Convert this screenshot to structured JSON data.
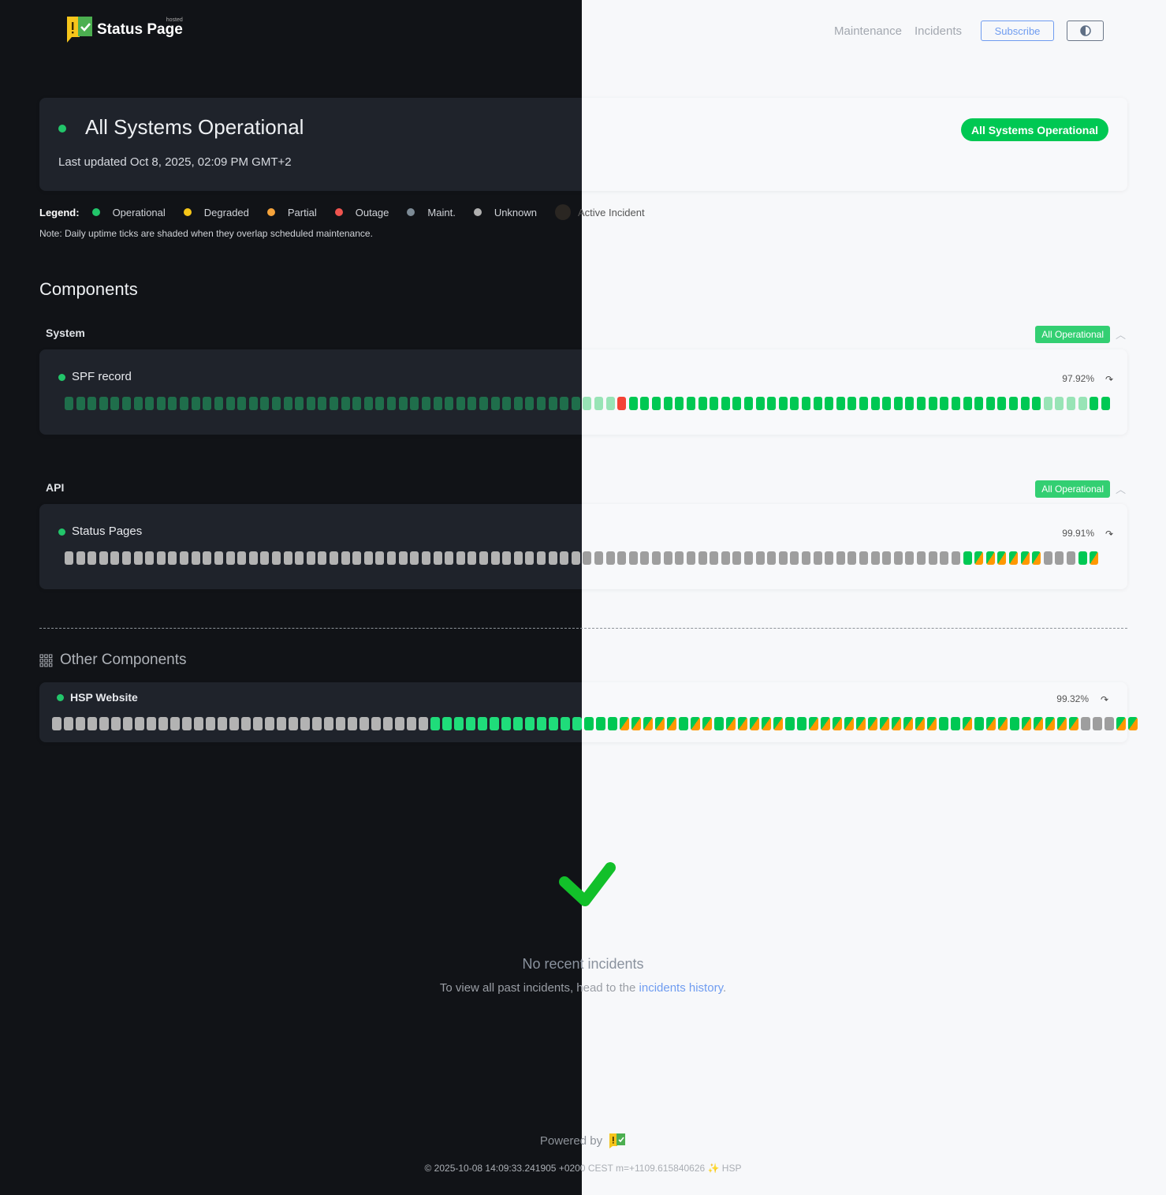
{
  "header": {
    "logo_text": "Status Page",
    "logo_hosted": "hosted",
    "nav": {
      "maintenance": "Maintenance",
      "incidents": "Incidents",
      "subscribe": "Subscribe"
    },
    "theme_icon": "half-circle-contrast-icon"
  },
  "hero": {
    "title": "All Systems Operational",
    "last_updated": "Last updated Oct 8, 2025, 02:09 PM GMT+2",
    "badge": "All Systems Operational"
  },
  "legend": {
    "label": "Legend:",
    "items": [
      {
        "label": "Operational",
        "color": "#22c56a"
      },
      {
        "label": "Degraded",
        "color": "#f5c518"
      },
      {
        "label": "Partial",
        "color": "#f5a33b"
      },
      {
        "label": "Outage",
        "color": "#f0544f"
      },
      {
        "label": "Maint.",
        "color": "#7d8b96"
      },
      {
        "label": "Unknown",
        "color": "#b0b0b0"
      }
    ],
    "active_incident": {
      "label": "Active Incident",
      "color": "#2a2622"
    },
    "note": "Note: Daily uptime ticks are shaded when they overlap scheduled maintenance."
  },
  "components_heading": "Components",
  "tick_codes": {
    "o": "operational",
    "p": "operational-low-data",
    "r": "outage",
    "u": "unknown",
    "m": "operational-partial-mixed"
  },
  "colors": {
    "operational": "#00c853",
    "outage": "#f44336",
    "partial": "#ff9800",
    "unknown": "#9e9e9e",
    "link": "#6f9cf0"
  },
  "groups": [
    {
      "label": "System",
      "badge": "All Operational",
      "components": [
        {
          "name": "SPF record",
          "uptime": "97.92%",
          "ticks": "pppppppppppppppppppppppppppppppppppppppppppppppprooooooooooooooooooooooooooooooooooooppppoo"
        }
      ]
    },
    {
      "label": "API",
      "badge": "All Operational",
      "components": [
        {
          "name": "Status Pages",
          "uptime": "99.91%",
          "ticks": "uuuuuuuuuuuuuuuuuuuuuuuuuuuuuuuuuuuuuuuuuuuuuuuuuuuuuuuuuuuuuuuuuuuuuuuuuuuuuuommmmmmuuuom"
        }
      ]
    }
  ],
  "other": {
    "heading": "Other Components",
    "components": [
      {
        "name": "HSP Website",
        "uptime": "99.32%",
        "ticks": "uuuuuuuuuuuuuuuuuuuuuuuuuuuuuuuuoooooooooooooooommmmmommommmmmoommmmmmmmmmmoomommommmmmuuumm"
      }
    ]
  },
  "incidents": {
    "title": "No recent incidents",
    "text": "To view all past incidents, head to the",
    "link": "incidents history",
    "suffix": "."
  },
  "footer": {
    "powered_by": "Powered by",
    "copyright": "© 2025-10-08 14:09:33.241905 +0200 CEST m=+1109.615840626 ✨ HSP"
  }
}
